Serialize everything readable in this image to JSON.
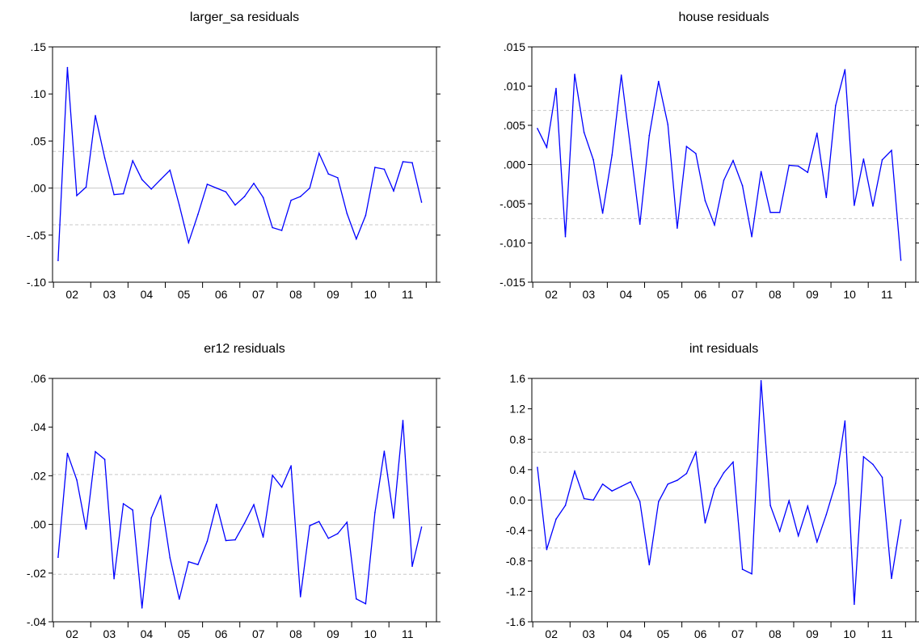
{
  "chart_data": [
    {
      "type": "line",
      "title": "larger_sa residuals",
      "xlabel": "",
      "ylabel": "",
      "x_tick_labels": [
        "02",
        "03",
        "04",
        "05",
        "06",
        "07",
        "08",
        "09",
        "10",
        "11"
      ],
      "y_ticks": [
        0.15,
        0.1,
        0.05,
        0.0,
        -0.05,
        -0.1
      ],
      "y_tick_labels": [
        ".15",
        ".10",
        ".05",
        ".00",
        "-.05",
        "-.10"
      ],
      "ylim": [
        -0.1,
        0.15
      ],
      "reference_lines": [
        0.0,
        0.039,
        -0.039
      ],
      "line_color": "#0000ff",
      "series": [
        {
          "values": [
            -0.077,
            0.128,
            -0.008,
            0.001,
            0.077,
            0.032,
            -0.007,
            -0.006,
            0.029,
            0.009,
            -0.001,
            0.009,
            0.019,
            -0.018,
            -0.058,
            -0.028,
            0.004,
            0.0,
            -0.004,
            -0.018,
            -0.009,
            0.005,
            -0.01,
            -0.042,
            -0.045,
            -0.013,
            -0.009,
            0.0,
            0.037,
            0.015,
            0.011,
            -0.027,
            -0.054,
            -0.029,
            0.022,
            0.02,
            -0.003,
            0.028,
            0.027,
            -0.015
          ]
        }
      ]
    },
    {
      "type": "line",
      "title": "house residuals",
      "xlabel": "",
      "ylabel": "",
      "x_tick_labels": [
        "02",
        "03",
        "04",
        "05",
        "06",
        "07",
        "08",
        "09",
        "10",
        "11"
      ],
      "y_ticks": [
        0.015,
        0.01,
        0.005,
        0.0,
        -0.005,
        -0.01,
        -0.015
      ],
      "y_tick_labels": [
        ".015",
        ".010",
        ".005",
        ".000",
        "-.005",
        "-.010",
        "-.015"
      ],
      "ylim": [
        -0.015,
        0.015
      ],
      "reference_lines": [
        0.0,
        0.0069,
        -0.0069
      ],
      "line_color": "#0000ff",
      "series": [
        {
          "values": [
            0.0046,
            0.0022,
            0.0097,
            -0.0092,
            0.0115,
            0.0041,
            0.0006,
            -0.0062,
            0.0012,
            0.0114,
            0.002,
            -0.0076,
            0.0037,
            0.0106,
            0.0051,
            -0.0081,
            0.0023,
            0.0014,
            -0.0046,
            -0.0077,
            -0.002,
            0.0005,
            -0.0027,
            -0.0092,
            -0.0009,
            -0.0061,
            -0.0061,
            -0.0001,
            -0.0002,
            -0.001,
            0.004,
            -0.0042,
            0.0075,
            0.0121,
            -0.0052,
            0.0007,
            -0.0053,
            0.0006,
            0.0018,
            -0.0122
          ]
        }
      ]
    },
    {
      "type": "line",
      "title": "er12 residuals",
      "xlabel": "",
      "ylabel": "",
      "x_tick_labels": [
        "02",
        "03",
        "04",
        "05",
        "06",
        "07",
        "08",
        "09",
        "10",
        "11"
      ],
      "y_ticks": [
        0.06,
        0.04,
        0.02,
        0.0,
        -0.02,
        -0.04
      ],
      "y_tick_labels": [
        ".06",
        ".04",
        ".02",
        ".00",
        "-.02",
        "-.04"
      ],
      "ylim": [
        -0.04,
        0.06
      ],
      "reference_lines": [
        0.0,
        0.0205,
        -0.0205
      ],
      "line_color": "#0000ff",
      "series": [
        {
          "values": [
            -0.0135,
            0.0292,
            0.0183,
            -0.0019,
            0.0299,
            0.0267,
            -0.0223,
            0.0085,
            0.0059,
            -0.0343,
            0.0027,
            0.0117,
            -0.0137,
            -0.0307,
            -0.0153,
            -0.0165,
            -0.0069,
            0.0083,
            -0.0066,
            -0.0063,
            0.0005,
            0.0081,
            -0.0052,
            0.0202,
            0.0153,
            0.0241,
            -0.0297,
            -0.0005,
            0.0012,
            -0.0057,
            -0.0038,
            0.0009,
            -0.0306,
            -0.0326,
            0.0049,
            0.0301,
            0.0026,
            0.0427,
            -0.0172,
            -0.0011
          ]
        }
      ]
    },
    {
      "type": "line",
      "title": "int residuals",
      "xlabel": "",
      "ylabel": "",
      "x_tick_labels": [
        "02",
        "03",
        "04",
        "05",
        "06",
        "07",
        "08",
        "09",
        "10",
        "11"
      ],
      "y_ticks": [
        1.6,
        1.2,
        0.8,
        0.4,
        0.0,
        -0.4,
        -0.8,
        -1.2,
        -1.6
      ],
      "y_tick_labels": [
        "1.6",
        "1.2",
        "0.8",
        "0.4",
        "0.0",
        "-0.4",
        "-0.8",
        "-1.2",
        "-1.6"
      ],
      "ylim": [
        -1.6,
        1.6
      ],
      "reference_lines": [
        0.0,
        0.63,
        -0.63
      ],
      "line_color": "#0000ff",
      "series": [
        {
          "values": [
            0.43,
            -0.65,
            -0.25,
            -0.07,
            0.38,
            0.02,
            0.0,
            0.21,
            0.12,
            0.18,
            0.24,
            -0.02,
            -0.85,
            -0.02,
            0.21,
            0.26,
            0.35,
            0.63,
            -0.3,
            0.15,
            0.36,
            0.5,
            -0.91,
            -0.97,
            1.57,
            -0.07,
            -0.41,
            -0.01,
            -0.47,
            -0.08,
            -0.55,
            -0.19,
            0.22,
            1.04,
            -1.37,
            0.57,
            0.47,
            0.3,
            -1.03,
            -0.26
          ]
        }
      ]
    }
  ]
}
